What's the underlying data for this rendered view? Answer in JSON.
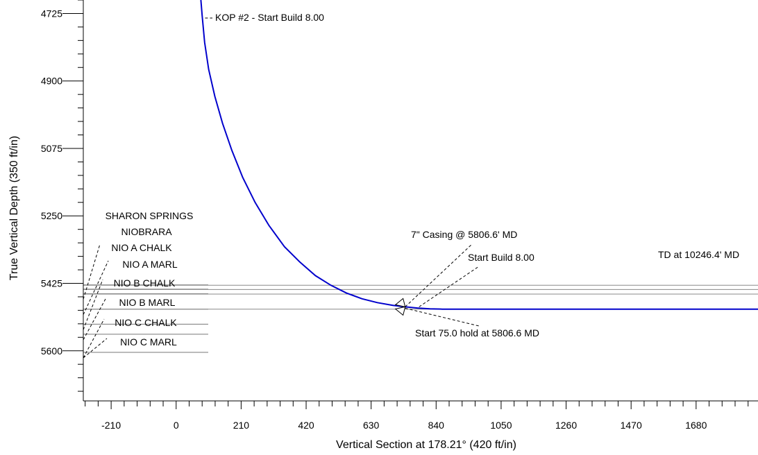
{
  "chart_data": {
    "type": "line",
    "title": "",
    "xlabel": "Vertical Section at 178.21° (420 ft/in)",
    "ylabel": "True Vertical Depth (350 ft/in)",
    "xlim": [
      -300,
      1880
    ],
    "ylim": [
      4690,
      5730
    ],
    "y_inverted": true,
    "grid": false,
    "x_ticks": [
      -210,
      0,
      210,
      420,
      630,
      840,
      1050,
      1260,
      1470,
      1680
    ],
    "y_ticks": [
      4725,
      4900,
      5075,
      5250,
      5425,
      5600
    ],
    "series": [
      {
        "color": "#0000cc",
        "x": [
          80,
          84,
          92,
          105,
          125,
          150,
          180,
          215,
          255,
          300,
          350,
          400,
          450,
          500,
          550,
          600,
          650,
          700,
          740,
          780,
          820,
          860,
          1000,
          1200,
          1400,
          1600,
          1880
        ],
        "y": [
          4690,
          4730,
          4800,
          4870,
          4940,
          5010,
          5080,
          5150,
          5215,
          5275,
          5330,
          5370,
          5405,
          5430,
          5450,
          5465,
          5475,
          5482,
          5486,
          5489,
          5491,
          5492,
          5492,
          5492,
          5492,
          5492,
          5492
        ]
      }
    ],
    "formations": [
      {
        "name": "SHARON SPRINGS",
        "tvd": 5429
      },
      {
        "name": "NIOBRARA",
        "tvd": 5440
      },
      {
        "name": "NIO A CHALK",
        "tvd": 5452
      },
      {
        "name": "NIO A MARL",
        "tvd": 5492
      },
      {
        "name": "NIO B CHALK",
        "tvd": 5531
      },
      {
        "name": "NIO B MARL",
        "tvd": 5557
      },
      {
        "name": "NIO C CHALK",
        "tvd": 5604
      },
      {
        "name": "NIO C MARL",
        "tvd": 5604
      }
    ],
    "annotations": [
      {
        "text": "KOP #2 - Start Build 8.00",
        "x": 80,
        "y": 4727
      },
      {
        "text": "7\" Casing @ 5806.6' MD",
        "x": 740,
        "y": 5486
      },
      {
        "text": "Start Build 8.00",
        "x": 740,
        "y": 5486
      },
      {
        "text": "Start 75.0 hold at 5806.6 MD",
        "x": 740,
        "y": 5486
      },
      {
        "text": "TD at 10246.4' MD",
        "x": 1880,
        "y": 5492
      }
    ],
    "legend": "none"
  }
}
